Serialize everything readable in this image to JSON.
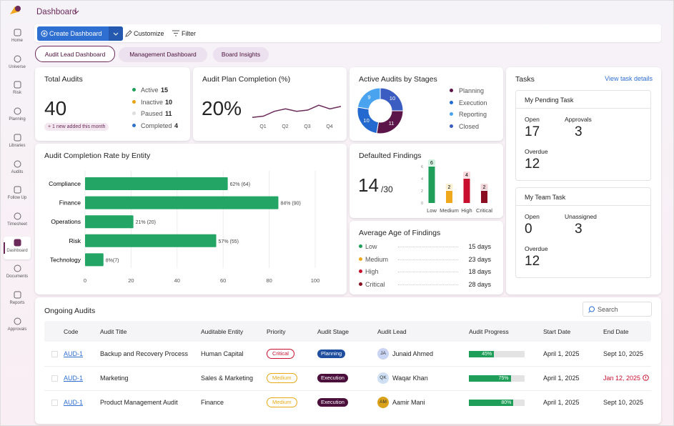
{
  "header": {
    "title": "Dashboard"
  },
  "sidebar": {
    "items": [
      "Home",
      "Universe",
      "Risk",
      "Planning",
      "Libraries",
      "Audits",
      "Follow Up",
      "Timesheet",
      "Dashboard",
      "Documents",
      "Reports",
      "Approvals"
    ]
  },
  "toolbar": {
    "create": "Create Dashboard",
    "customize": "Customize",
    "filter": "Filter"
  },
  "tabs": [
    "Audit Lead Dashboard",
    "Management Dashboard",
    "Board Insights"
  ],
  "total_audits": {
    "title": "Total Audits",
    "value": 40,
    "note": "+ 1 new added this month",
    "legend": [
      {
        "name": "Active",
        "value": 15,
        "color": "#1e9e58"
      },
      {
        "name": "Inactive",
        "value": 10,
        "color": "#e6a117"
      },
      {
        "name": "Paused",
        "value": 11,
        "color": "#dddddd"
      },
      {
        "name": "Completed",
        "value": 4,
        "color": "#2f74c8"
      }
    ]
  },
  "plan_completion": {
    "title": "Audit Plan Completion (%)",
    "value": "20%",
    "categories": [
      "Q1",
      "Q2",
      "Q3",
      "Q4"
    ],
    "values": [
      2,
      2.5,
      4.5,
      5.5,
      4.5,
      5,
      7,
      5.5,
      6.5
    ],
    "ylim": [
      0,
      10
    ],
    "color": "#6b2a5a"
  },
  "stages": {
    "title": "Active Audits by Stages",
    "series": [
      {
        "name": "Planning",
        "value": 11,
        "color": "#5b1548"
      },
      {
        "name": "Execution",
        "value": 10,
        "color": "#2469cf"
      },
      {
        "name": "Reporting",
        "value": 9,
        "color": "#4aa3ee"
      },
      {
        "name": "Closed",
        "value": 10,
        "color": "#3b5cc0"
      }
    ]
  },
  "completion_rate": {
    "title": "Audit Completion Rate by Entity",
    "categories": [
      "Compliance",
      "Finance",
      "Operations",
      "Risk",
      "Technology"
    ],
    "values": [
      62,
      84,
      21,
      57,
      8
    ],
    "value_labels": [
      "62% (64)",
      "84% (90)",
      "21% (20)",
      "57% (55)",
      "8%(7)"
    ],
    "xlim": [
      0,
      100
    ],
    "xticks": [
      0,
      20,
      40,
      60,
      80,
      100
    ],
    "color": "#22a565"
  },
  "defaulted": {
    "title": "Defaulted Findings",
    "value": 14,
    "total_label": "/30",
    "categories": [
      "Low",
      "Medium",
      "High",
      "Critical"
    ],
    "values": [
      6,
      2,
      4,
      2
    ],
    "colors": [
      "#1e9e58",
      "#f0a81c",
      "#c8102e",
      "#8b0d22"
    ],
    "label_bg": [
      "#d4f2e2",
      "#fdf0d2",
      "#fadadf",
      "#f2d6da"
    ],
    "ylim": [
      0,
      6
    ],
    "yticks": [
      0,
      2,
      4,
      6
    ]
  },
  "age": {
    "title": "Average Age of Findings",
    "rows": [
      {
        "name": "Low",
        "value": "15 days",
        "color": "#1e9e58"
      },
      {
        "name": "Medium",
        "value": "23 days",
        "color": "#f0a81c"
      },
      {
        "name": "High",
        "value": "18 days",
        "color": "#c8102e"
      },
      {
        "name": "Critical",
        "value": "28 days",
        "color": "#8b0d22"
      }
    ]
  },
  "tasks": {
    "title": "Tasks",
    "link": "View task details",
    "boxes": [
      {
        "title": "My Pending Task",
        "items": [
          {
            "label": "Open",
            "value": 17
          },
          {
            "label": "Approvals",
            "value": 3
          },
          {
            "label": "Overdue",
            "value": 12
          }
        ]
      },
      {
        "title": "My Team Task",
        "items": [
          {
            "label": "Open",
            "value": 0
          },
          {
            "label": "Unassigned",
            "value": 3
          },
          {
            "label": "Overdue",
            "value": 12
          }
        ]
      }
    ]
  },
  "ongoing": {
    "title": "Ongoing Audits",
    "search": "Search",
    "columns": [
      "Code",
      "Audit Title",
      "Auditable Entity",
      "Priority",
      "Audit Stage",
      "Audit Lead",
      "Audit Progress",
      "Start Date",
      "End Date"
    ],
    "rows": [
      {
        "code": "AUD-1",
        "title": "Backup and Recovery Process",
        "entity": "Human Capital",
        "priority": "Critical",
        "priority_color": "#c8102e",
        "stage": "Planning",
        "stage_color": "#1f4e9e",
        "initials": "JA",
        "avatar_color": "#c9d4f2",
        "lead": "Junaid Ahmed",
        "progress": 45,
        "progress_label": "45%",
        "start": "April 1, 2025",
        "end": "Sept 10, 2025",
        "end_overdue": false
      },
      {
        "code": "AUD-1",
        "title": "Marketing",
        "entity": "Sales & Marketing",
        "priority": "Medium",
        "priority_color": "#e8a916",
        "stage": "Execution",
        "stage_color": "#4a0f3a",
        "initials": "QK",
        "avatar_color": "#cfe0f5",
        "lead": "Waqar Khan",
        "progress": 75,
        "progress_label": "75%",
        "start": "April 1, 2025",
        "end": "Jan 12, 2025",
        "end_overdue": true
      },
      {
        "code": "AUD-1",
        "title": "Product Management Audit",
        "entity": "Finance",
        "priority": "Medium",
        "priority_color": "#e8a916",
        "stage": "Execution",
        "stage_color": "#4a0f3a",
        "initials": "AM",
        "avatar_color": "#d9a21a",
        "lead": "Aamir Mani",
        "progress": 80,
        "progress_label": "80%",
        "start": "April 1, 2025",
        "end": "Sept 10, 2025",
        "end_overdue": false
      }
    ]
  }
}
